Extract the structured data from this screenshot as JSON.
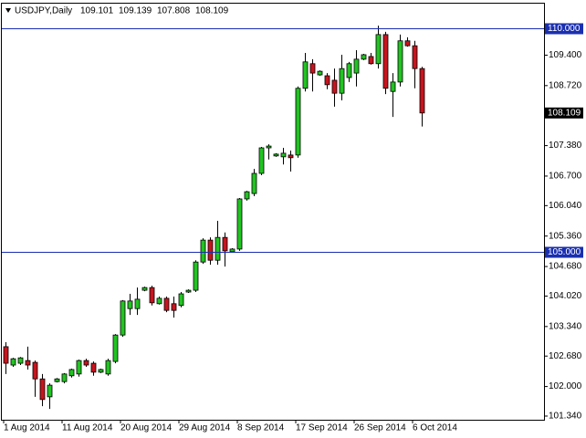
{
  "chart_data": {
    "type": "candlestick",
    "title": "USDJPY,Daily",
    "header": [
      {
        "value": 109.101,
        "label": "109.101"
      },
      {
        "value": 109.139,
        "label": "109.139"
      },
      {
        "value": 107.808,
        "label": "107.808"
      },
      {
        "value": 108.109,
        "label": "108.109"
      }
    ],
    "categories": [
      "1 Aug 2014",
      null,
      null,
      null,
      null,
      null,
      null,
      null,
      "11 Aug 2014",
      null,
      null,
      null,
      null,
      null,
      null,
      null,
      "20 Aug 2014",
      null,
      null,
      null,
      null,
      null,
      null,
      null,
      "29 Aug 2014",
      null,
      null,
      null,
      null,
      null,
      null,
      null,
      "8 Sep 2014",
      null,
      null,
      null,
      null,
      null,
      null,
      null,
      "17 Sep 2014",
      null,
      null,
      null,
      null,
      null,
      null,
      null,
      "26 Sep 2014",
      null,
      null,
      null,
      null,
      null,
      null,
      null,
      "6 Oct 2014",
      null
    ],
    "open": [
      102.89,
      102.48,
      102.52,
      102.58,
      102.54,
      102.17,
      101.77,
      102.11,
      102.11,
      102.24,
      102.28,
      102.58,
      102.52,
      102.32,
      102.28,
      102.56,
      103.15,
      103.74,
      103.74,
      104.15,
      104.21,
      103.85,
      103.97,
      103.85,
      103.81,
      104.11,
      104.15,
      104.78,
      105.27,
      104.82,
      105.33,
      105.01,
      105.07,
      106.19,
      106.31,
      106.76,
      107.33,
      107.15,
      107.13,
      107.17,
      107.17,
      108.66,
      109.21,
      108.96,
      108.94,
      108.84,
      108.55,
      108.9,
      109.0,
      109.31,
      109.37,
      109.21,
      109.86,
      108.59,
      108.8,
      109.72,
      109.61,
      109.101
    ],
    "high": [
      102.99,
      102.64,
      102.66,
      102.89,
      102.58,
      102.28,
      102.07,
      102.19,
      102.3,
      102.4,
      102.6,
      102.62,
      102.56,
      102.4,
      102.62,
      103.17,
      103.93,
      104.07,
      104.21,
      104.23,
      104.25,
      104.01,
      104.01,
      104.01,
      104.11,
      104.17,
      104.82,
      105.31,
      105.33,
      105.7,
      105.44,
      105.09,
      106.21,
      106.37,
      106.86,
      107.35,
      107.41,
      107.21,
      107.33,
      107.27,
      108.7,
      109.45,
      109.31,
      109.06,
      109.0,
      109.1,
      109.41,
      109.25,
      109.51,
      109.43,
      109.45,
      110.06,
      109.92,
      109.0,
      109.86,
      109.8,
      109.72,
      109.139
    ],
    "low": [
      102.28,
      102.44,
      102.48,
      102.38,
      101.77,
      101.56,
      101.5,
      102.09,
      102.07,
      102.2,
      102.22,
      102.44,
      102.24,
      102.3,
      102.24,
      102.52,
      103.11,
      103.6,
      103.6,
      104.13,
      103.81,
      103.83,
      103.66,
      103.54,
      103.77,
      104.09,
      104.11,
      104.74,
      104.72,
      104.72,
      104.68,
      104.99,
      105.03,
      106.15,
      106.25,
      106.72,
      107.07,
      107.13,
      106.96,
      106.8,
      107.11,
      108.59,
      108.59,
      108.94,
      108.64,
      108.25,
      108.39,
      108.8,
      108.7,
      109.29,
      109.19,
      109.1,
      108.53,
      108.02,
      108.7,
      109.59,
      108.66,
      107.808
    ],
    "close": [
      102.52,
      102.62,
      102.64,
      102.48,
      102.17,
      101.71,
      102.03,
      102.17,
      102.28,
      102.38,
      102.58,
      102.48,
      102.32,
      102.38,
      102.58,
      103.15,
      103.91,
      103.91,
      103.95,
      104.21,
      103.87,
      103.97,
      103.7,
      103.7,
      104.07,
      104.15,
      104.78,
      105.27,
      104.82,
      105.33,
      105.03,
      105.07,
      106.19,
      106.35,
      106.76,
      107.33,
      107.37,
      107.19,
      107.21,
      107.11,
      108.66,
      109.25,
      109.0,
      109.04,
      108.74,
      108.55,
      109.1,
      109.21,
      109.31,
      109.41,
      109.21,
      109.86,
      108.66,
      108.8,
      109.72,
      109.61,
      109.1,
      108.109
    ],
    "up_color": "#22c422",
    "down_color": "#c8141e",
    "ylim": [
      101.258,
      110.53
    ],
    "yticks": [
      {
        "value": 109.4,
        "label": "109.400"
      },
      {
        "value": 108.72,
        "label": "108.720"
      },
      {
        "value": 107.38,
        "label": "107.380"
      },
      {
        "value": 106.7,
        "label": "106.700"
      },
      {
        "value": 106.04,
        "label": "106.040"
      },
      {
        "value": 105.36,
        "label": "105.360"
      },
      {
        "value": 104.68,
        "label": "104.680"
      },
      {
        "value": 104.02,
        "label": "104.020"
      },
      {
        "value": 103.34,
        "label": "103.340"
      },
      {
        "value": 102.68,
        "label": "102.680"
      },
      {
        "value": 102.0,
        "label": "102.000"
      },
      {
        "value": 101.34,
        "label": "101.340"
      }
    ],
    "hlines": [
      {
        "value": 110.0,
        "label": "110.000"
      },
      {
        "value": 105.0,
        "label": "105.000"
      }
    ],
    "hline_color": "#1a2fb0",
    "last_price": {
      "value": 108.109,
      "label": "108.109"
    }
  }
}
